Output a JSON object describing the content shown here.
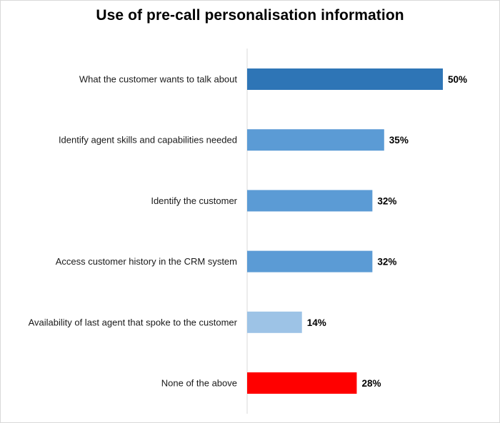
{
  "chart_data": {
    "type": "bar",
    "orientation": "horizontal",
    "title": "Use of pre-call personalisation information",
    "xlabel": "",
    "ylabel": "",
    "xlim": [
      0,
      50
    ],
    "grid": false,
    "legend": "none",
    "categories": [
      "What the customer wants to talk about",
      "Identify agent skills and capabilities needed",
      "Identify the customer",
      "Access customer history in the CRM system",
      "Availability of last agent that spoke to the customer",
      "None of the above"
    ],
    "values": [
      50,
      35,
      32,
      32,
      14,
      28
    ],
    "value_labels": [
      "50%",
      "35%",
      "32%",
      "32%",
      "14%",
      "28%"
    ],
    "colors": [
      "#2e75b6",
      "#5b9bd5",
      "#5b9bd5",
      "#5b9bd5",
      "#9dc3e6",
      "#ff0000"
    ]
  }
}
